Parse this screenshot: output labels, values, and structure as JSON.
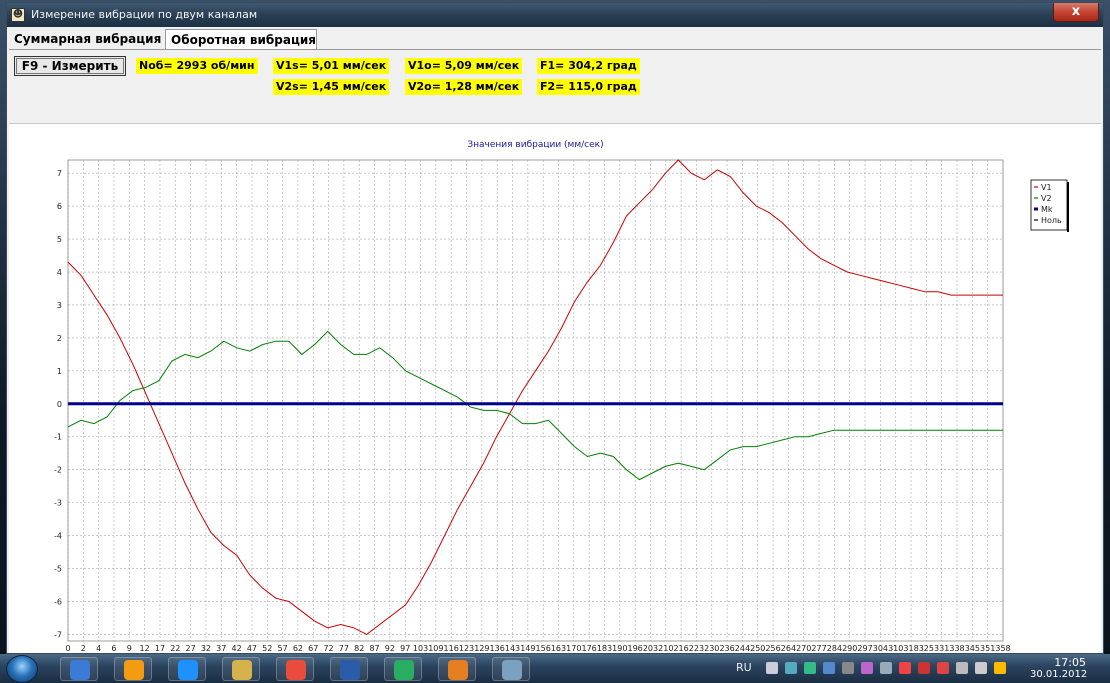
{
  "window": {
    "title": "Измерение вибрации по двум каналам",
    "close_label": "x"
  },
  "tabs": [
    {
      "label": "Суммарная вибрация"
    },
    {
      "label": "Оборотная вибрация"
    }
  ],
  "toolbar": {
    "measure_label": "F9 - Измерить",
    "values": {
      "nob": "Nоб= 2993 об/мин",
      "v1s": "V1s= 5,01 мм/сек",
      "v2s": "V2s= 1,45 мм/сек",
      "v1o": "V1o= 5,09 мм/сек",
      "v2o": "V2o= 1,28 мм/сек",
      "f1": "F1= 304,2 град",
      "f2": "F2= 115,0 град"
    }
  },
  "chart_data": {
    "type": "line",
    "title": "Значения вибрации  (мм/сек)",
    "xlim": [
      0,
      360
    ],
    "ylim": [
      -7.2,
      7.4
    ],
    "y_ticks": [
      7,
      6,
      5,
      4,
      3,
      2,
      1,
      0,
      -1,
      -2,
      -3,
      -4,
      -5,
      -6,
      -7
    ],
    "x_tick_labels": [
      "0",
      "2",
      "4",
      "6",
      "9",
      "12",
      "17",
      "22",
      "27",
      "32",
      "37",
      "42",
      "47",
      "52",
      "57",
      "62",
      "67",
      "72",
      "77",
      "82",
      "87",
      "92",
      "97",
      "103",
      "109",
      "116",
      "123",
      "129",
      "136",
      "143",
      "149",
      "156",
      "163",
      "170",
      "176",
      "183",
      "190",
      "196",
      "203",
      "210",
      "216",
      "223",
      "230",
      "236",
      "244",
      "250",
      "256",
      "264",
      "270",
      "277",
      "284",
      "290",
      "297",
      "304",
      "310",
      "318",
      "325",
      "331",
      "338",
      "345",
      "351",
      "358"
    ],
    "grid": true,
    "legend_position": "right",
    "legend": [
      "V1",
      "V2",
      "Mk",
      "Ноль"
    ],
    "series": [
      {
        "name": "V1",
        "color": "#cc0000",
        "x": [
          0,
          5,
          10,
          15,
          20,
          25,
          30,
          35,
          40,
          45,
          50,
          55,
          60,
          65,
          70,
          75,
          80,
          85,
          90,
          95,
          100,
          105,
          110,
          115,
          120,
          125,
          130,
          135,
          140,
          145,
          150,
          155,
          160,
          165,
          170,
          175,
          180,
          185,
          190,
          195,
          200,
          205,
          210,
          215,
          220,
          225,
          230,
          235,
          240,
          245,
          250,
          255,
          260,
          265,
          270,
          275,
          280,
          285,
          290,
          295,
          300,
          305,
          310,
          315,
          320,
          325,
          330,
          335,
          340,
          345,
          350,
          355,
          360
        ],
        "y": [
          4.3,
          3.9,
          3.3,
          2.7,
          2.0,
          1.2,
          0.3,
          -0.6,
          -1.5,
          -2.4,
          -3.2,
          -3.9,
          -4.3,
          -4.6,
          -5.2,
          -5.6,
          -5.9,
          -6.0,
          -6.3,
          -6.6,
          -6.8,
          -6.7,
          -6.8,
          -7.0,
          -6.7,
          -6.4,
          -6.1,
          -5.5,
          -4.8,
          -4.0,
          -3.2,
          -2.5,
          -1.8,
          -1.0,
          -0.3,
          0.4,
          1.0,
          1.6,
          2.3,
          3.1,
          3.7,
          4.2,
          4.9,
          5.7,
          6.1,
          6.5,
          7.0,
          7.4,
          7.0,
          6.8,
          7.1,
          6.9,
          6.4,
          6.0,
          5.8,
          5.5,
          5.1,
          4.7,
          4.4,
          4.2,
          4.0,
          3.9,
          3.8,
          3.7,
          3.6,
          3.5,
          3.4,
          3.4,
          3.3,
          3.3,
          3.3,
          3.3,
          3.3
        ]
      },
      {
        "name": "V2",
        "color": "#008000",
        "x": [
          0,
          5,
          10,
          15,
          20,
          25,
          30,
          35,
          40,
          45,
          50,
          55,
          60,
          65,
          70,
          75,
          80,
          85,
          90,
          95,
          100,
          105,
          110,
          115,
          120,
          125,
          130,
          135,
          140,
          145,
          150,
          155,
          160,
          165,
          170,
          175,
          180,
          185,
          190,
          195,
          200,
          205,
          210,
          215,
          220,
          225,
          230,
          235,
          240,
          245,
          250,
          255,
          260,
          265,
          270,
          275,
          280,
          285,
          290,
          295,
          300,
          305,
          310,
          315,
          320,
          325,
          330,
          335,
          340,
          345,
          350,
          355,
          360
        ],
        "y": [
          -0.7,
          -0.5,
          -0.6,
          -0.4,
          0.1,
          0.4,
          0.5,
          0.7,
          1.3,
          1.5,
          1.4,
          1.6,
          1.9,
          1.7,
          1.6,
          1.8,
          1.9,
          1.9,
          1.5,
          1.8,
          2.2,
          1.8,
          1.5,
          1.5,
          1.7,
          1.4,
          1.0,
          0.8,
          0.6,
          0.4,
          0.2,
          -0.1,
          -0.2,
          -0.2,
          -0.3,
          -0.6,
          -0.6,
          -0.5,
          -0.9,
          -1.3,
          -1.6,
          -1.5,
          -1.6,
          -2.0,
          -2.3,
          -2.1,
          -1.9,
          -1.8,
          -1.9,
          -2.0,
          -1.7,
          -1.4,
          -1.3,
          -1.3,
          -1.2,
          -1.1,
          -1.0,
          -1.0,
          -0.9,
          -0.8,
          -0.8,
          -0.8,
          -0.8,
          -0.8,
          -0.8,
          -0.8,
          -0.8,
          -0.8,
          -0.8,
          -0.8,
          -0.8,
          -0.8,
          -0.8
        ]
      },
      {
        "name": "Mk",
        "color": "#00008b",
        "x": [
          0,
          360
        ],
        "y": [
          0,
          0
        ]
      },
      {
        "name": "Ноль",
        "color": "#000000",
        "x": [],
        "y": []
      }
    ]
  },
  "taskbar": {
    "lang": "RU",
    "time": "17:05",
    "date": "30.01.2012",
    "icon_colors": [
      "#3a7bd5",
      "#f39c12",
      "#1e90ff",
      "#d4b24c",
      "#e74c3c",
      "#2a5caa",
      "#27ae60",
      "#e67e22",
      "#7aa2c0"
    ]
  }
}
